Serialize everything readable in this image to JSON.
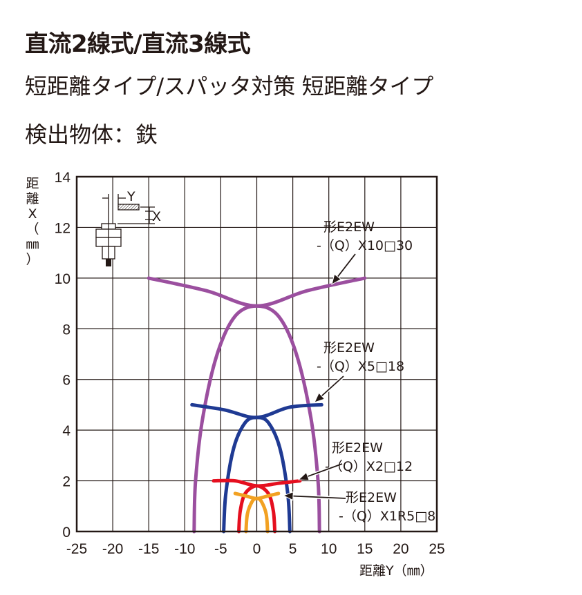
{
  "header": {
    "title": "直流2線式/直流3線式",
    "subtitle": "短距離タイプ/スパッタ対策 短距離タイプ",
    "detection": "検出物体：鉄"
  },
  "chart_data": {
    "type": "line",
    "xlabel": "距離Y（㎜）",
    "ylabel": "距離X（㎜）",
    "xlim": [
      -25,
      25
    ],
    "ylim": [
      0,
      14
    ],
    "xticks": [
      -25,
      -20,
      -15,
      -10,
      -5,
      0,
      5,
      10,
      15,
      20,
      25
    ],
    "yticks": [
      0,
      2,
      4,
      6,
      8,
      10,
      12,
      14
    ],
    "xtick_labels": [
      "-25",
      "-20",
      "-15",
      "-10",
      "-5",
      "0",
      "5",
      "10",
      "15",
      "20",
      "25"
    ],
    "ytick_labels": [
      "0",
      "2",
      "4",
      "6",
      "8",
      "10",
      "12",
      "14"
    ],
    "grid": true,
    "diagram_labels": {
      "y": "Y",
      "x": "X"
    },
    "series": [
      {
        "name": "形E2EW\n-（Q）X10□30",
        "color": "#9b4f9f",
        "lobe": [
          [
            -8.7,
            0
          ],
          [
            -8.5,
            2
          ],
          [
            -7.5,
            4.5
          ],
          [
            -5.5,
            7
          ],
          [
            -3,
            8.5
          ],
          [
            0,
            8.9
          ],
          [
            3,
            8.5
          ],
          [
            5.5,
            7
          ],
          [
            7.5,
            4.5
          ],
          [
            8.5,
            2
          ],
          [
            8.7,
            0
          ]
        ],
        "wings": [
          [
            -15,
            10
          ],
          [
            -7,
            9.5
          ],
          [
            0,
            8.9
          ],
          [
            7,
            9.5
          ],
          [
            15,
            10
          ]
        ]
      },
      {
        "name": "形E2EW\n-（Q）X5□18",
        "color": "#1f3a93",
        "lobe": [
          [
            -4.6,
            0
          ],
          [
            -4.3,
            1.5
          ],
          [
            -3.2,
            3.3
          ],
          [
            -1.6,
            4.3
          ],
          [
            0,
            4.5
          ],
          [
            1.6,
            4.3
          ],
          [
            3.2,
            3.3
          ],
          [
            4.3,
            1.5
          ],
          [
            4.6,
            0
          ]
        ],
        "wings": [
          [
            -9,
            5
          ],
          [
            -4.5,
            4.8
          ],
          [
            0,
            4.5
          ],
          [
            4.5,
            4.9
          ],
          [
            9,
            5
          ]
        ]
      },
      {
        "name": "形E2EW\n-（Q）X2□12",
        "color": "#e50f1f",
        "lobe": [
          [
            -2.5,
            0
          ],
          [
            -2.3,
            0.8
          ],
          [
            -1.6,
            1.5
          ],
          [
            0,
            1.8
          ],
          [
            1.6,
            1.5
          ],
          [
            2.3,
            0.8
          ],
          [
            2.5,
            0
          ]
        ],
        "wings": [
          [
            -6,
            2
          ],
          [
            -3,
            2
          ],
          [
            0,
            1.8
          ],
          [
            3,
            1.9
          ],
          [
            6,
            2
          ]
        ]
      },
      {
        "name": "形E2EW\n-（Q）X1R5□8",
        "color": "#f2a122",
        "lobe": [
          [
            -1.5,
            0
          ],
          [
            -1.3,
            0.7
          ],
          [
            -0.6,
            1.2
          ],
          [
            0,
            1.3
          ],
          [
            0.6,
            1.2
          ],
          [
            1.3,
            0.7
          ],
          [
            1.5,
            0
          ]
        ],
        "wings": [
          [
            -3,
            1.5
          ],
          [
            -1.5,
            1.4
          ],
          [
            0,
            1.3
          ],
          [
            1.5,
            1.4
          ],
          [
            3,
            1.5
          ]
        ]
      }
    ],
    "annotations": [
      {
        "series": 0,
        "text_lines": [
          "形E2EW",
          "-（Q）X10□30"
        ]
      },
      {
        "series": 1,
        "text_lines": [
          "形E2EW",
          "-（Q）X5□18"
        ]
      },
      {
        "series": 2,
        "text_lines": [
          "形E2EW",
          "-（Q）X2□12"
        ]
      },
      {
        "series": 3,
        "text_lines": [
          "形E2EW",
          "-（Q）X1R5□8"
        ]
      }
    ]
  }
}
